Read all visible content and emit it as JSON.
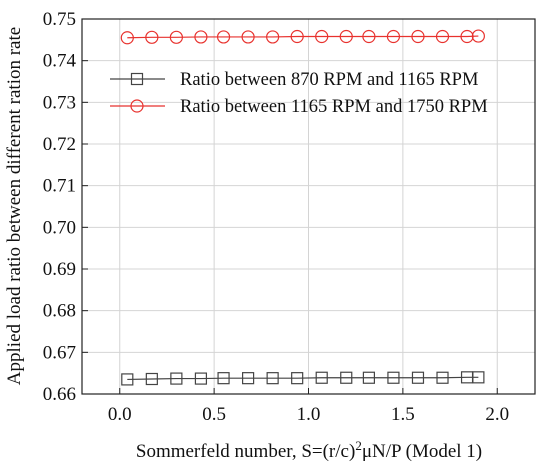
{
  "chart_data": {
    "type": "line",
    "xlabel_prefix": "Sommerfeld number, S=(r/c)",
    "xlabel_sup": "2",
    "xlabel_suffix": "μN/P (Model 1)",
    "ylabel": "Applied load ratio between different ration rate",
    "xlim": [
      -0.2,
      2.2
    ],
    "ylim": [
      0.66,
      0.75
    ],
    "xticks": [
      "0.0",
      "0.5",
      "1.0",
      "1.5",
      "2.0"
    ],
    "yticks": [
      "0.66",
      "0.67",
      "0.68",
      "0.69",
      "0.70",
      "0.71",
      "0.72",
      "0.73",
      "0.74",
      "0.75"
    ],
    "grid": true,
    "legend_position": "upper-right",
    "series": [
      {
        "name": "Ratio between 870 RPM and 1165 RPM",
        "marker": "square",
        "color": "#444444",
        "x": [
          0.04,
          0.17,
          0.3,
          0.43,
          0.55,
          0.68,
          0.81,
          0.94,
          1.07,
          1.2,
          1.32,
          1.45,
          1.58,
          1.71,
          1.84,
          1.9
        ],
        "y": [
          0.6635,
          0.6636,
          0.6637,
          0.6637,
          0.6638,
          0.6638,
          0.6638,
          0.6638,
          0.6639,
          0.6639,
          0.6639,
          0.6639,
          0.6639,
          0.6639,
          0.664,
          0.664
        ]
      },
      {
        "name": "Ratio between 1165 RPM and 1750 RPM",
        "marker": "circle",
        "color": "#e8322e",
        "x": [
          0.04,
          0.17,
          0.3,
          0.43,
          0.55,
          0.68,
          0.81,
          0.94,
          1.07,
          1.2,
          1.32,
          1.45,
          1.58,
          1.71,
          1.84,
          1.9
        ],
        "y": [
          0.7455,
          0.7456,
          0.7456,
          0.7457,
          0.7457,
          0.7457,
          0.7457,
          0.7458,
          0.7458,
          0.7458,
          0.7458,
          0.7458,
          0.7458,
          0.7458,
          0.7458,
          0.7459
        ]
      }
    ]
  }
}
